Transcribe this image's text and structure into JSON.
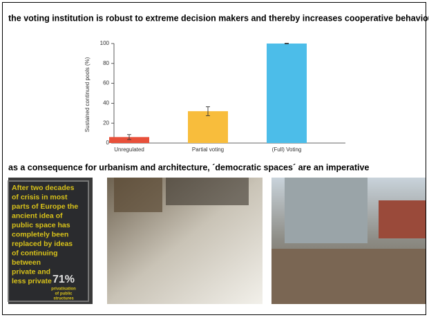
{
  "headline": "the voting institution is robust to extreme decision makers and thereby increases cooperative behaviour",
  "chart_data": {
    "type": "bar",
    "y_label": "Sustained continued pools (%)",
    "categories": [
      "Unregulated",
      "Partial voting",
      "(Full) Voting"
    ],
    "values": [
      6,
      32,
      100
    ],
    "errors": [
      2.5,
      4.5,
      0.3
    ],
    "colors": [
      "#e8503a",
      "#f8bd3c",
      "#4cbde9"
    ],
    "ylim": [
      0,
      100
    ],
    "yticks": [
      0,
      20,
      40,
      60,
      80,
      100
    ]
  },
  "subheadline": "as a consequence for urbanism and architecture, ´democratic spaces´ are an imperative",
  "sign": {
    "lines": [
      "After two decades",
      "of crisis in most",
      "parts of Europe the",
      "ancient idea of",
      "public space has",
      "completely been",
      "replaced by ideas",
      "of continuing",
      "between",
      "private and",
      "less private"
    ],
    "figure": "71%",
    "caption": [
      "privatisation",
      "of public",
      "structures"
    ]
  }
}
